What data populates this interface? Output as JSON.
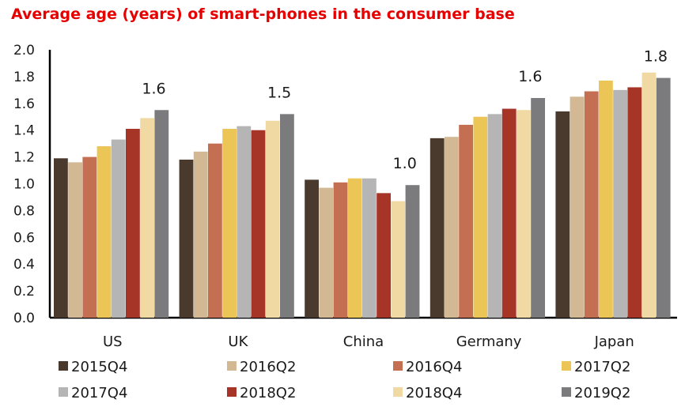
{
  "chart_data": {
    "type": "bar",
    "title": "Average age (years) of smart-phones in the consumer base",
    "xlabel": "",
    "ylabel": "",
    "ylim": [
      0,
      2.0
    ],
    "yticks": [
      "0.0",
      "0.2",
      "0.4",
      "0.6",
      "0.8",
      "1.0",
      "1.2",
      "1.4",
      "1.6",
      "1.8",
      "2.0"
    ],
    "grid": false,
    "legend_position": "bottom",
    "categories": [
      "US",
      "UK",
      "China",
      "Germany",
      "Japan"
    ],
    "series": [
      {
        "name": "2015Q4",
        "color": "#4a3a2e",
        "values": [
          1.19,
          1.18,
          1.03,
          1.34,
          1.54
        ]
      },
      {
        "name": "2016Q2",
        "color": "#d2b994",
        "values": [
          1.16,
          1.24,
          0.97,
          1.35,
          1.65
        ]
      },
      {
        "name": "2016Q4",
        "color": "#c46e52",
        "values": [
          1.2,
          1.3,
          1.01,
          1.44,
          1.69
        ]
      },
      {
        "name": "2017Q2",
        "color": "#ecc557",
        "values": [
          1.28,
          1.41,
          1.04,
          1.5,
          1.77
        ]
      },
      {
        "name": "2017Q4",
        "color": "#b5b5b5",
        "values": [
          1.33,
          1.43,
          1.04,
          1.52,
          1.7
        ]
      },
      {
        "name": "2018Q2",
        "color": "#a63427",
        "values": [
          1.41,
          1.4,
          0.93,
          1.56,
          1.72
        ]
      },
      {
        "name": "2018Q4",
        "color": "#f0d9a2",
        "values": [
          1.49,
          1.47,
          0.87,
          1.55,
          1.83
        ]
      },
      {
        "name": "2019Q2",
        "color": "#7b7b7d",
        "values": [
          1.55,
          1.52,
          0.99,
          1.64,
          1.79
        ]
      }
    ],
    "annotations": [
      "1.6",
      "1.5",
      "1.0",
      "1.6",
      "1.8"
    ]
  }
}
